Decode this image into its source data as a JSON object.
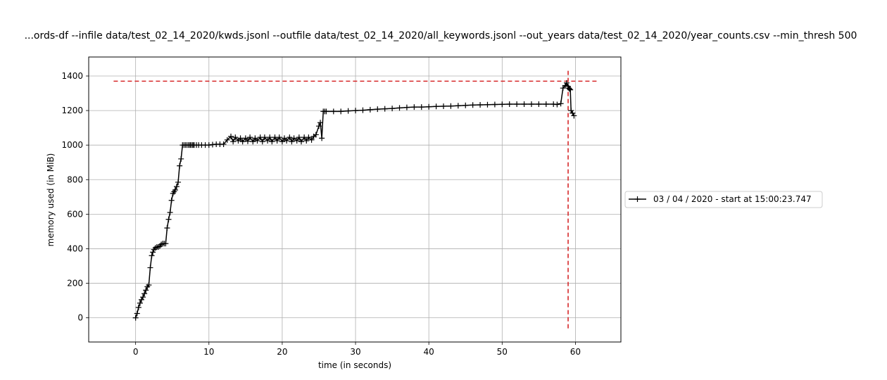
{
  "chart_data": {
    "type": "line",
    "title": "...ords-df --infile data/test_02_14_2020/kwds.jsonl --outfile data/test_02_14_2020/all_keywords.jsonl --out_years data/test_02_14_2020/year_counts.csv --min_thresh 500",
    "xlabel": "time (in seconds)",
    "ylabel": "memory used (in MiB)",
    "xlim": [
      -6.4,
      66.2
    ],
    "ylim": [
      -140,
      1510
    ],
    "x_ticks": [
      0,
      10,
      20,
      30,
      40,
      50,
      60
    ],
    "y_ticks": [
      0,
      200,
      400,
      600,
      800,
      1000,
      1200,
      1400
    ],
    "grid": true,
    "legend_position": "right, outside plot",
    "series": [
      {
        "name": "03 / 04 / 2020 - start at 15:00:23.747",
        "color": "#000000",
        "marker": "+",
        "x": [
          0.0,
          0.2,
          0.4,
          0.6,
          0.8,
          1.0,
          1.2,
          1.4,
          1.6,
          1.8,
          2.0,
          2.2,
          2.35,
          2.5,
          2.7,
          2.9,
          3.1,
          3.3,
          3.5,
          3.7,
          3.9,
          4.1,
          4.3,
          4.5,
          4.7,
          4.9,
          5.1,
          5.25,
          5.4,
          5.6,
          5.8,
          6.0,
          6.2,
          6.4,
          6.6,
          6.8,
          7.0,
          7.2,
          7.4,
          7.5,
          7.7,
          7.85,
          8.0,
          8.3,
          8.6,
          9.0,
          9.5,
          10.0,
          10.5,
          11.0,
          11.5,
          12.0,
          12.5,
          13.0,
          13.3,
          13.6,
          14.0,
          14.3,
          14.6,
          15.0,
          15.3,
          15.6,
          16.0,
          16.3,
          16.6,
          17.0,
          17.3,
          17.6,
          18.0,
          18.3,
          18.6,
          19.0,
          19.3,
          19.6,
          20.0,
          20.3,
          20.6,
          21.0,
          21.3,
          21.6,
          22.0,
          22.3,
          22.6,
          23.0,
          23.3,
          23.6,
          24.0,
          24.3,
          24.6,
          25.0,
          25.2,
          25.4,
          25.6,
          25.8,
          26.0,
          27.0,
          28.0,
          29.0,
          30.0,
          31.0,
          32.0,
          33.0,
          34.0,
          35.0,
          36.0,
          37.0,
          38.0,
          39.0,
          40.0,
          41.0,
          42.0,
          43.0,
          44.0,
          45.0,
          46.0,
          47.0,
          48.0,
          49.0,
          50.0,
          51.0,
          52.0,
          53.0,
          54.0,
          55.0,
          56.0,
          57.0,
          57.5,
          58.0,
          58.3,
          58.6,
          58.8,
          59.0,
          59.1,
          59.2,
          59.3,
          59.4,
          59.6,
          59.8
        ],
        "y": [
          0,
          25,
          60,
          85,
          105,
          120,
          140,
          160,
          180,
          190,
          290,
          360,
          380,
          395,
          405,
          410,
          410,
          415,
          425,
          430,
          430,
          430,
          520,
          570,
          610,
          680,
          720,
          730,
          740,
          760,
          785,
          880,
          920,
          1000,
          1000,
          1000,
          1000,
          1000,
          1000,
          1000,
          1000,
          1000,
          1000,
          1000,
          1000,
          1000,
          1000,
          1000,
          1003,
          1005,
          1005,
          1005,
          1030,
          1050,
          1020,
          1045,
          1025,
          1040,
          1020,
          1040,
          1022,
          1045,
          1020,
          1040,
          1025,
          1045,
          1020,
          1045,
          1025,
          1045,
          1020,
          1045,
          1025,
          1045,
          1020,
          1040,
          1025,
          1045,
          1020,
          1040,
          1025,
          1045,
          1020,
          1045,
          1025,
          1045,
          1030,
          1050,
          1060,
          1110,
          1130,
          1040,
          1195,
          1195,
          1195,
          1195,
          1195,
          1198,
          1200,
          1202,
          1205,
          1208,
          1210,
          1212,
          1215,
          1218,
          1220,
          1220,
          1222,
          1224,
          1225,
          1226,
          1228,
          1230,
          1232,
          1233,
          1234,
          1235,
          1236,
          1237,
          1237,
          1237,
          1237,
          1237,
          1237,
          1237,
          1235,
          1240,
          1330,
          1345,
          1360,
          1340,
          1330,
          1325,
          1320,
          1200,
          1185,
          1170
        ]
      }
    ],
    "annotations": [
      {
        "type": "hline",
        "y": 1370,
        "x_from": -3.0,
        "x_to": 63.0,
        "color": "#d62728",
        "style": "dashed"
      },
      {
        "type": "vline",
        "x": 59.0,
        "y_from": -70,
        "y_to": 1430,
        "color": "#d62728",
        "style": "dashed"
      }
    ]
  }
}
